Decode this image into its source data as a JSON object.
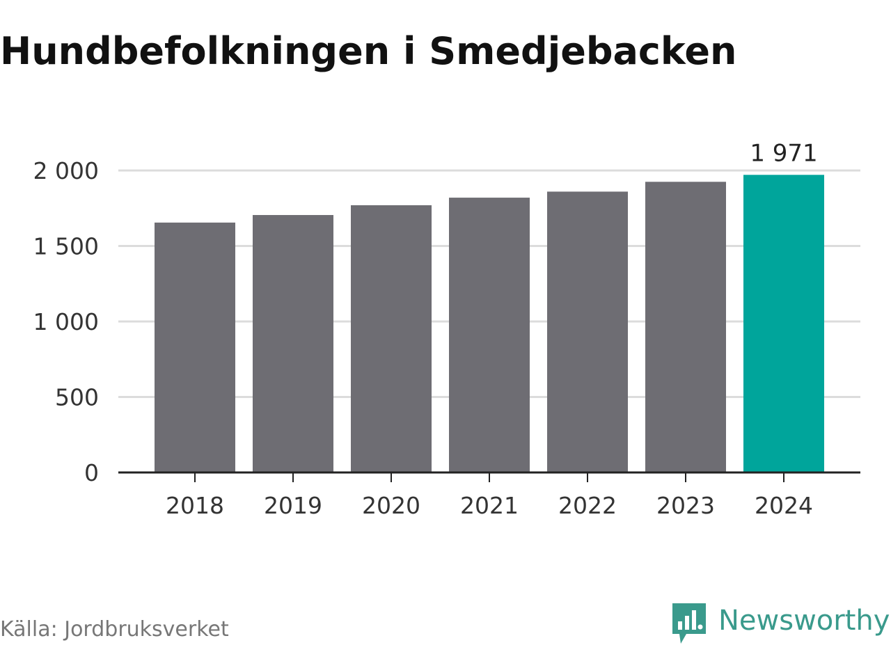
{
  "title": "Hundbefolkningen i Smedjebacken",
  "source": "Källa: Jordbruksverket",
  "brand": {
    "name": "Newsworthy",
    "icon": "newsworthy-logo-icon",
    "color": "#3a9a8c"
  },
  "colors": {
    "bar": "#6e6d73",
    "highlight": "#00a59b",
    "grid": "#dcdcdc",
    "axis": "#222222"
  },
  "chart_data": {
    "type": "bar",
    "title": "Hundbefolkningen i Smedjebacken",
    "categories": [
      "2018",
      "2019",
      "2020",
      "2021",
      "2022",
      "2023",
      "2024"
    ],
    "values": [
      1655,
      1705,
      1770,
      1820,
      1860,
      1925,
      1971
    ],
    "highlight_index": 6,
    "data_labels": [
      {
        "index": 6,
        "text": "1 971"
      }
    ],
    "ylim": [
      0,
      2000
    ],
    "yticks": [
      {
        "value": 0,
        "label": "0"
      },
      {
        "value": 500,
        "label": "500"
      },
      {
        "value": 1000,
        "label": "1 000"
      },
      {
        "value": 1500,
        "label": "1 500"
      },
      {
        "value": 2000,
        "label": "2 000"
      }
    ],
    "xlabel": "",
    "ylabel": "",
    "grid": true
  }
}
